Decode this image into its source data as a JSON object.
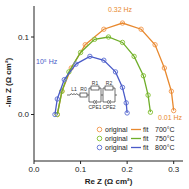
{
  "chart_data": {
    "type": "scatter",
    "x_label": "Re Z (Ω cm²)",
    "y_label": "-Im Z (Ω cm²)",
    "xlim": [
      0,
      0.32
    ],
    "ylim": [
      -0.06,
      0.14
    ],
    "xticks": [
      {
        "value": 0,
        "label": "0.0"
      },
      {
        "value": 0.1,
        "label": "0.1"
      },
      {
        "value": 0.2,
        "label": "0.2"
      },
      {
        "value": 0.3,
        "label": "0.3"
      }
    ],
    "yticks": [
      {
        "value": 0,
        "label": "0.0"
      },
      {
        "value": 0.1,
        "label": "0.1"
      }
    ],
    "grid": false,
    "legend": "lower right",
    "annotations": [
      {
        "text": "0.32 Hz",
        "color": "#e8892f"
      },
      {
        "text": "0.01 Hz",
        "color": "#e8892f"
      },
      {
        "text": "10⁵ Hz",
        "color": "#4a5bc8"
      }
    ],
    "series": [
      {
        "name": "original",
        "group": "700°C",
        "type": "scatter",
        "marker": "circle",
        "color": "#f5a05a",
        "x": [
          0.05,
          0.06,
          0.08,
          0.11,
          0.15,
          0.19,
          0.23,
          0.26,
          0.28,
          0.295,
          0.3
        ],
        "values": [
          0,
          0.03,
          0.06,
          0.09,
          0.11,
          0.118,
          0.11,
          0.09,
          0.06,
          0.03,
          0.005
        ]
      },
      {
        "name": "fit",
        "group": "700°C",
        "type": "line",
        "line_style": "solid",
        "color": "#e8892f",
        "x": [
          0.05,
          0.06,
          0.08,
          0.11,
          0.15,
          0.19,
          0.23,
          0.26,
          0.28,
          0.295,
          0.3
        ],
        "values": [
          0,
          0.03,
          0.06,
          0.09,
          0.11,
          0.118,
          0.11,
          0.09,
          0.06,
          0.03,
          0.005
        ]
      },
      {
        "name": "original",
        "group": "750°C",
        "type": "scatter",
        "marker": "circle",
        "color": "#8dc63f",
        "x": [
          0.05,
          0.06,
          0.075,
          0.1,
          0.13,
          0.16,
          0.19,
          0.215,
          0.235,
          0.245,
          0.25
        ],
        "values": [
          0,
          0.03,
          0.055,
          0.08,
          0.097,
          0.1,
          0.093,
          0.075,
          0.05,
          0.025,
          0.003
        ]
      },
      {
        "name": "fit",
        "group": "750°C",
        "type": "line",
        "line_style": "solid",
        "color": "#6fae2a",
        "x": [
          0.05,
          0.06,
          0.075,
          0.1,
          0.13,
          0.16,
          0.19,
          0.215,
          0.235,
          0.245,
          0.25
        ],
        "values": [
          0,
          0.03,
          0.055,
          0.08,
          0.097,
          0.1,
          0.093,
          0.075,
          0.05,
          0.025,
          0.003
        ]
      },
      {
        "name": "original",
        "group": "800°C",
        "type": "scatter",
        "marker": "circle",
        "color": "#6a7bd8",
        "x": [
          0.045,
          0.05,
          0.065,
          0.09,
          0.12,
          0.15,
          0.175,
          0.19,
          0.198,
          0.2
        ],
        "values": [
          0,
          0.02,
          0.045,
          0.065,
          0.075,
          0.07,
          0.055,
          0.035,
          0.015,
          0.002
        ]
      },
      {
        "name": "fit",
        "group": "800°C",
        "type": "line",
        "line_style": "solid",
        "color": "#4a5bc8",
        "x": [
          0.045,
          0.05,
          0.065,
          0.09,
          0.12,
          0.15,
          0.175,
          0.19,
          0.198,
          0.2
        ],
        "values": [
          0,
          0.02,
          0.045,
          0.065,
          0.075,
          0.07,
          0.055,
          0.035,
          0.015,
          0.002
        ]
      }
    ]
  },
  "inset_circuit": {
    "inductor": "L1",
    "resistor": "R0",
    "branches": [
      {
        "resistor": "R1",
        "cpe": "CPE1"
      },
      {
        "resistor": "R2",
        "cpe": "CPE2"
      }
    ]
  }
}
